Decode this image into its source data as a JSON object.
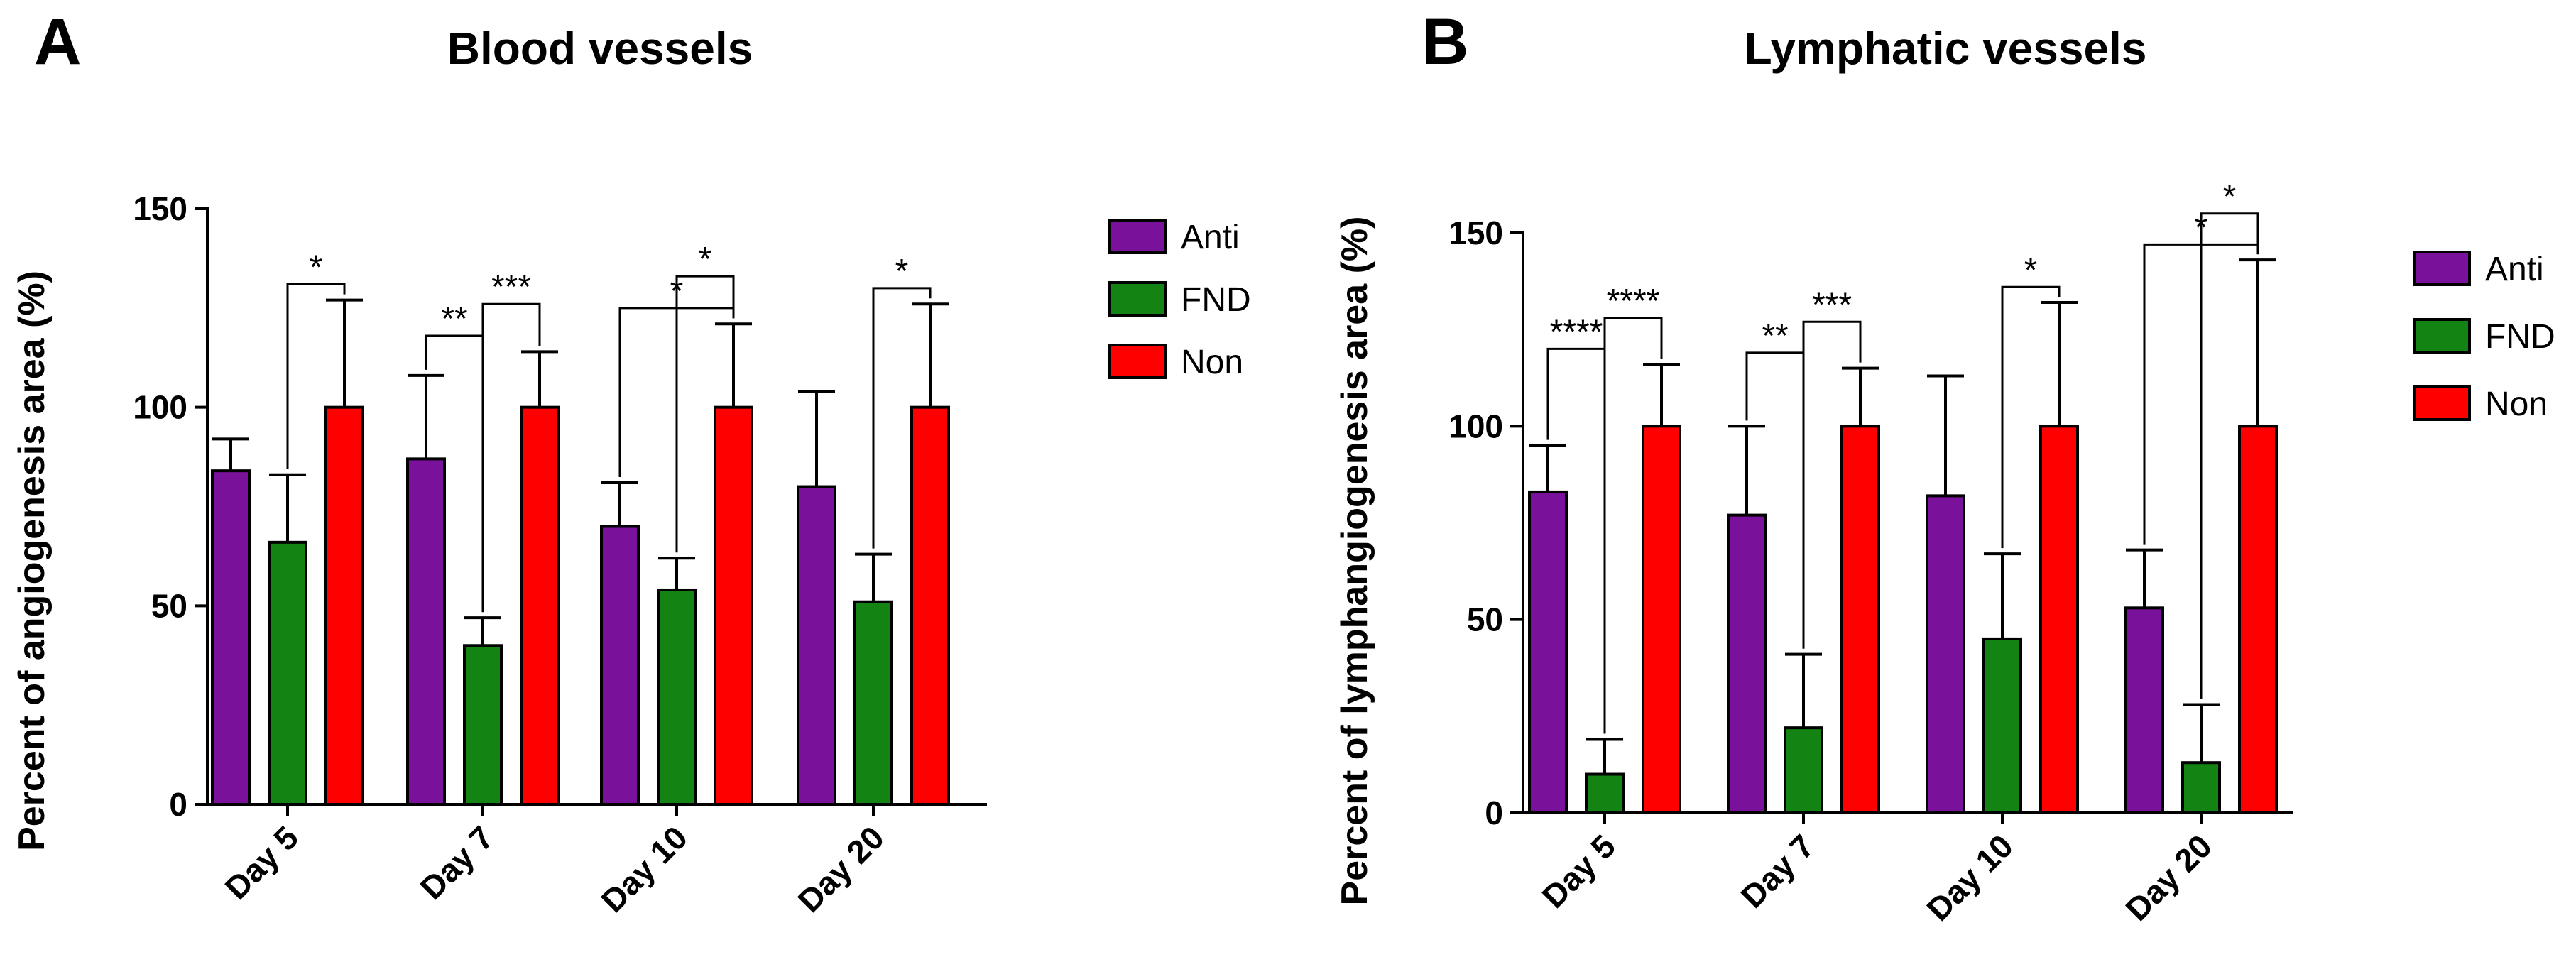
{
  "chart_data": [
    {
      "panel": "A",
      "type": "bar",
      "title": "Blood vessels",
      "xlabel": "",
      "ylabel": "Percent of angiogenesis area (%)",
      "ylim": [
        0,
        150
      ],
      "yticks": [
        "0",
        "50",
        "100",
        "150"
      ],
      "categories": [
        "Day 5",
        "Day 7",
        "Day 10",
        "Day 20"
      ],
      "legend_position": "right",
      "series": [
        {
          "name": "Anti",
          "color": "#7a119a",
          "values": [
            84,
            87,
            70,
            80
          ],
          "errors": [
            8,
            21,
            11,
            24
          ]
        },
        {
          "name": "FND",
          "color": "#138413",
          "values": [
            66,
            40,
            54,
            51
          ],
          "errors": [
            17,
            7,
            8,
            12
          ]
        },
        {
          "name": "Non",
          "color": "#ff0000",
          "values": [
            100,
            100,
            100,
            100
          ],
          "errors": [
            27,
            14,
            21,
            26
          ]
        }
      ],
      "significance": [
        {
          "group": 0,
          "from": 1,
          "to": 2,
          "label": "*"
        },
        {
          "group": 1,
          "from": 0,
          "to": 1,
          "label": "**"
        },
        {
          "group": 1,
          "from": 1,
          "to": 2,
          "label": "***"
        },
        {
          "group": 2,
          "from": 0,
          "to": 2,
          "label": "*"
        },
        {
          "group": 2,
          "from": 1,
          "to": 2,
          "label": "*"
        },
        {
          "group": 3,
          "from": 1,
          "to": 2,
          "label": "*"
        }
      ]
    },
    {
      "panel": "B",
      "type": "bar",
      "title": "Lymphatic vessels",
      "xlabel": "",
      "ylabel": "Percent of lymphangiogenesis area (%)",
      "ylim": [
        0,
        150
      ],
      "yticks": [
        "0",
        "50",
        "100",
        "150"
      ],
      "categories": [
        "Day 5",
        "Day 7",
        "Day 10",
        "Day 20"
      ],
      "legend_position": "right",
      "series": [
        {
          "name": "Anti",
          "color": "#7a119a",
          "values": [
            83,
            77,
            82,
            53
          ],
          "errors": [
            12,
            23,
            31,
            15
          ]
        },
        {
          "name": "FND",
          "color": "#138413",
          "values": [
            10,
            22,
            45,
            13
          ],
          "errors": [
            9,
            19,
            22,
            15
          ]
        },
        {
          "name": "Non",
          "color": "#ff0000",
          "values": [
            100,
            100,
            100,
            100
          ],
          "errors": [
            16,
            15,
            32,
            43
          ]
        }
      ],
      "significance": [
        {
          "group": 0,
          "from": 0,
          "to": 1,
          "label": "****"
        },
        {
          "group": 0,
          "from": 1,
          "to": 2,
          "label": "****"
        },
        {
          "group": 1,
          "from": 0,
          "to": 1,
          "label": "**"
        },
        {
          "group": 1,
          "from": 1,
          "to": 2,
          "label": "***"
        },
        {
          "group": 2,
          "from": 1,
          "to": 2,
          "label": "*"
        },
        {
          "group": 3,
          "from": 0,
          "to": 2,
          "label": "*"
        },
        {
          "group": 3,
          "from": 1,
          "to": 2,
          "label": "*"
        }
      ]
    }
  ]
}
